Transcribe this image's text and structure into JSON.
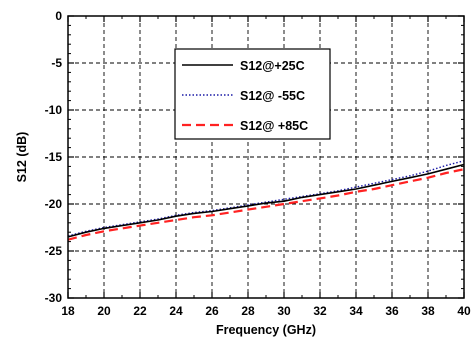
{
  "chart_data": {
    "type": "line",
    "xlabel": "Frequency (GHz)",
    "ylabel": "S12 (dB)",
    "xlim": [
      18,
      40
    ],
    "ylim": [
      -30,
      0
    ],
    "xticks": [
      18,
      20,
      22,
      24,
      26,
      28,
      30,
      32,
      34,
      36,
      38,
      40
    ],
    "yticks": [
      0,
      -5,
      -10,
      -15,
      -20,
      -25,
      -30
    ],
    "grid": true,
    "legend_position": "top-center",
    "series": [
      {
        "name": "S12@+25C",
        "color": "#000000",
        "style": "solid",
        "x": [
          18,
          19,
          20,
          21,
          22,
          23,
          24,
          25,
          26,
          27,
          28,
          29,
          30,
          31,
          32,
          33,
          34,
          35,
          36,
          37,
          38,
          39,
          40
        ],
        "values": [
          -23.5,
          -23.0,
          -22.6,
          -22.3,
          -22.0,
          -21.7,
          -21.3,
          -21.0,
          -20.8,
          -20.5,
          -20.2,
          -19.9,
          -19.7,
          -19.3,
          -19.0,
          -18.7,
          -18.4,
          -18.0,
          -17.6,
          -17.2,
          -16.8,
          -16.3,
          -15.8
        ]
      },
      {
        "name": "S12@ -55C",
        "color": "#1a1aa6",
        "style": "dotted",
        "x": [
          18,
          19,
          20,
          21,
          22,
          23,
          24,
          25,
          26,
          27,
          28,
          29,
          30,
          31,
          32,
          33,
          34,
          35,
          36,
          37,
          38,
          39,
          40
        ],
        "values": [
          -23.4,
          -22.9,
          -22.5,
          -22.2,
          -21.9,
          -21.6,
          -21.2,
          -20.9,
          -20.7,
          -20.4,
          -20.1,
          -19.8,
          -19.5,
          -19.2,
          -18.9,
          -18.6,
          -18.2,
          -17.8,
          -17.4,
          -17.0,
          -16.5,
          -15.9,
          -15.4
        ]
      },
      {
        "name": "S12@ +85C",
        "color": "#ff2222",
        "style": "dashed",
        "x": [
          18,
          19,
          20,
          21,
          22,
          23,
          24,
          25,
          26,
          27,
          28,
          29,
          30,
          31,
          32,
          33,
          34,
          35,
          36,
          37,
          38,
          39,
          40
        ],
        "values": [
          -23.8,
          -23.3,
          -22.9,
          -22.6,
          -22.3,
          -22.0,
          -21.7,
          -21.4,
          -21.2,
          -20.9,
          -20.6,
          -20.3,
          -20.0,
          -19.7,
          -19.4,
          -19.1,
          -18.7,
          -18.4,
          -18.0,
          -17.6,
          -17.2,
          -16.7,
          -16.3
        ]
      }
    ]
  }
}
